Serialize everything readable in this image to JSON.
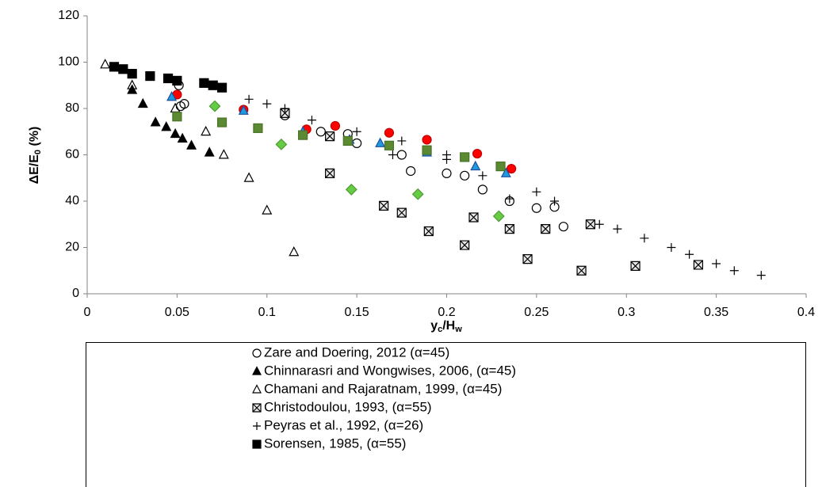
{
  "chart_data": {
    "type": "scatter",
    "x_label": [
      "y",
      "c",
      "/H",
      "w"
    ],
    "y_label": [
      "ΔE/E",
      "0",
      " (%)"
    ],
    "xlim": [
      0,
      0.4
    ],
    "xticks": [
      0,
      0.05,
      0.1,
      0.15,
      0.2,
      0.25,
      0.3,
      0.35,
      0.4
    ],
    "ylim": [
      0,
      120
    ],
    "yticks": [
      0,
      20,
      40,
      60,
      80,
      100,
      120
    ],
    "grid": false,
    "legend": "bottom",
    "series": [
      {
        "name": "Zare and Doering, 2012 (α=45)",
        "marker": "circle",
        "fill": "none",
        "color": "#000000",
        "x": [
          0.051,
          0.052,
          0.054,
          0.11,
          0.13,
          0.145,
          0.15,
          0.175,
          0.18,
          0.2,
          0.21,
          0.22,
          0.235,
          0.25,
          0.26,
          0.265
        ],
        "values": [
          90,
          81,
          82,
          77,
          70,
          69,
          65,
          60,
          53,
          52,
          51,
          45,
          40,
          37,
          37.5,
          29
        ]
      },
      {
        "name": "Chinnarasri and Wongwises, 2006, (α=45)",
        "marker": "triangle",
        "fill": "#000000",
        "color": "#000000",
        "x": [
          0.025,
          0.031,
          0.038,
          0.044,
          0.049,
          0.053,
          0.058,
          0.068
        ],
        "values": [
          88,
          82,
          74,
          72,
          69,
          67,
          64,
          61
        ]
      },
      {
        "name": "Chamani and Rajaratnam, 1999, (α=45)",
        "marker": "triangle",
        "fill": "none",
        "color": "#000000",
        "x": [
          0.01,
          0.025,
          0.049,
          0.066,
          0.076,
          0.09,
          0.1,
          0.115
        ],
        "values": [
          99,
          90,
          80,
          70,
          60,
          50,
          36,
          18
        ]
      },
      {
        "name": "Christodoulou, 1993, (α=55)",
        "marker": "boxed",
        "fill": "none",
        "color": "#000000",
        "x": [
          0.11,
          0.135,
          0.135,
          0.165,
          0.175,
          0.19,
          0.21,
          0.215,
          0.235,
          0.245,
          0.255,
          0.275,
          0.28,
          0.305,
          0.34
        ],
        "values": [
          78,
          68,
          52,
          38,
          35,
          27,
          21,
          33,
          28,
          15,
          28,
          10,
          30,
          12,
          12.5
        ]
      },
      {
        "name": "Peyras et al., 1992, (α=26)",
        "marker": "plus",
        "fill": "none",
        "color": "#000000",
        "x": [
          0.09,
          0.1,
          0.11,
          0.125,
          0.15,
          0.17,
          0.175,
          0.2,
          0.2,
          0.22,
          0.235,
          0.25,
          0.26,
          0.285,
          0.295,
          0.31,
          0.325,
          0.335,
          0.35,
          0.36,
          0.375
        ],
        "values": [
          84,
          82,
          80,
          75,
          70,
          60,
          66,
          60,
          58,
          51,
          41,
          44,
          40,
          30,
          28,
          24,
          20,
          17,
          13,
          10,
          8
        ]
      },
      {
        "name": "Sorensen, 1985, (α=55)",
        "marker": "square",
        "fill": "#000000",
        "color": "#000000",
        "x": [
          0.015,
          0.02,
          0.025,
          0.035,
          0.045,
          0.05,
          0.065,
          0.07,
          0.075
        ],
        "values": [
          98,
          97,
          95,
          94,
          93,
          92,
          91,
          90,
          89
        ]
      },
      {
        "marker": "circle",
        "fill": "#ff0000",
        "color": "#c00000",
        "x": [
          0.05,
          0.087,
          0.122,
          0.138,
          0.168,
          0.189,
          0.217,
          0.236
        ],
        "values": [
          86,
          79.5,
          71,
          72.5,
          69.5,
          66.5,
          60.5,
          54
        ]
      },
      {
        "marker": "triangle",
        "fill": "#1f9be0",
        "color": "#1f4e9c",
        "x": [
          0.047,
          0.087,
          0.12,
          0.146,
          0.163,
          0.189,
          0.216,
          0.233
        ],
        "values": [
          85,
          79,
          70,
          66.5,
          65,
          61,
          55,
          52
        ]
      },
      {
        "marker": "square",
        "fill": "#5b8a32",
        "color": "#4a7328",
        "x": [
          0.05,
          0.075,
          0.095,
          0.12,
          0.145,
          0.168,
          0.189,
          0.21,
          0.23
        ],
        "values": [
          76.5,
          74,
          71.5,
          68.5,
          66,
          64,
          62,
          59,
          55
        ]
      },
      {
        "marker": "diamond",
        "fill": "#66cc44",
        "color": "#4f9a33",
        "x": [
          0.071,
          0.108,
          0.147,
          0.184,
          0.229
        ],
        "values": [
          81,
          64.5,
          45,
          43,
          33.5
        ]
      }
    ]
  }
}
